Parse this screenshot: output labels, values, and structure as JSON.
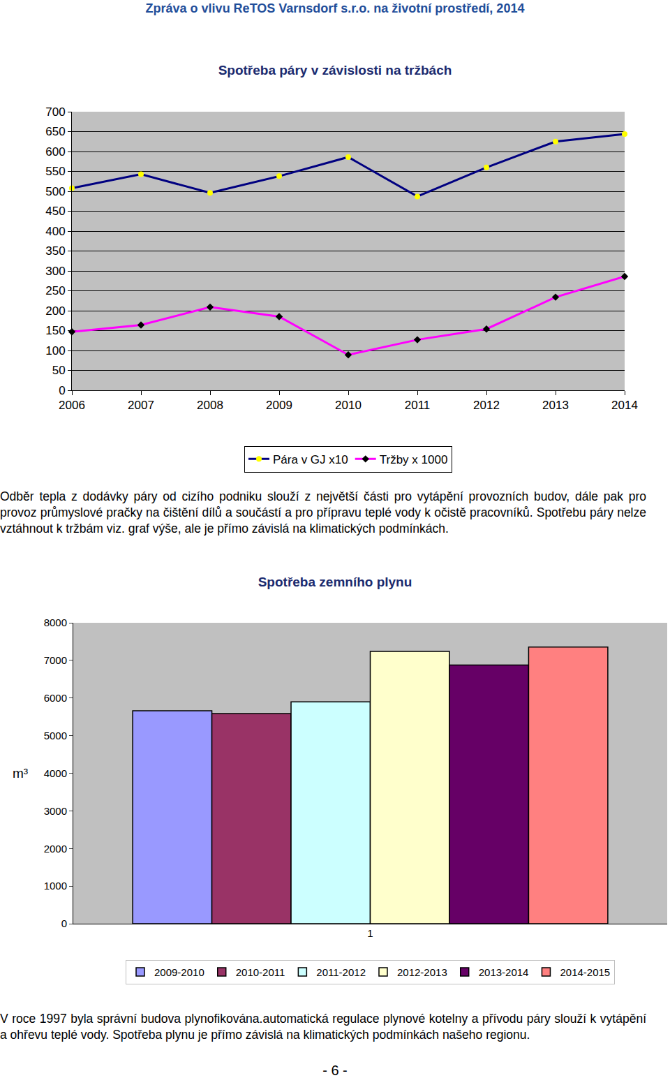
{
  "header": "Zpráva o vlivu ReTOS Varnsdorf s.r.o. na životní prostředí, 2014",
  "chart_data": [
    {
      "type": "line",
      "title": "Spotřeba páry v závislosti na tržbách",
      "categories": [
        "2006",
        "2007",
        "2008",
        "2009",
        "2010",
        "2011",
        "2012",
        "2013",
        "2014"
      ],
      "series": [
        {
          "name": "Pára v GJ x10",
          "color": "#000080",
          "marker": "circle",
          "values": [
            508,
            543,
            496,
            538,
            586,
            487,
            560,
            625,
            644
          ]
        },
        {
          "name": "Tržby x 1000",
          "color": "#ff00ff",
          "marker": "diamond",
          "values": [
            147,
            164,
            209,
            185,
            89,
            127,
            154,
            234,
            286
          ]
        }
      ],
      "ylim": [
        0,
        700
      ],
      "yticks": [
        0,
        50,
        100,
        150,
        200,
        250,
        300,
        350,
        400,
        450,
        500,
        550,
        600,
        650,
        700
      ],
      "grid": true,
      "legend": "bottom"
    },
    {
      "type": "bar",
      "title": "Spotřeba zemního plynu",
      "y_label": "m³",
      "categories": [
        "1"
      ],
      "series": [
        {
          "name": "2009-2010",
          "color": "#9999ff",
          "values": [
            5660
          ]
        },
        {
          "name": "2010-2011",
          "color": "#993366",
          "values": [
            5585
          ]
        },
        {
          "name": "2011-2012",
          "color": "#ccffff",
          "values": [
            5900
          ]
        },
        {
          "name": "2012-2013",
          "color": "#ffffcc",
          "values": [
            7240
          ]
        },
        {
          "name": "2013-2014",
          "color": "#660066",
          "values": [
            6875
          ]
        },
        {
          "name": "2014-2015",
          "color": "#ff8080",
          "values": [
            7355
          ]
        }
      ],
      "ylim": [
        0,
        8000
      ],
      "yticks": [
        0,
        1000,
        2000,
        3000,
        4000,
        5000,
        6000,
        7000,
        8000
      ],
      "grid": false,
      "legend": "bottom"
    }
  ],
  "paragraphs": [
    "Odběr tepla z dodávky páry od cizího podniku slouží z největší části pro vytápění provozních budov, dále pak pro provoz průmyslové pračky na čištění dílů a součástí a pro přípravu teplé vody k očistě pracovníků. Spotřebu páry nelze vztáhnout k tržbám viz. graf výše, ale je přímo závislá na klimatických podmínkách.",
    "V roce 1997 byla správní budova plynofikována.automatická regulace plynové kotelny a přívodu páry slouží k vytápění a ohřevu teplé vody. Spotřeba plynu je přímo závislá na klimatických podmínkách našeho regionu."
  ],
  "page_number": "- 6 -"
}
